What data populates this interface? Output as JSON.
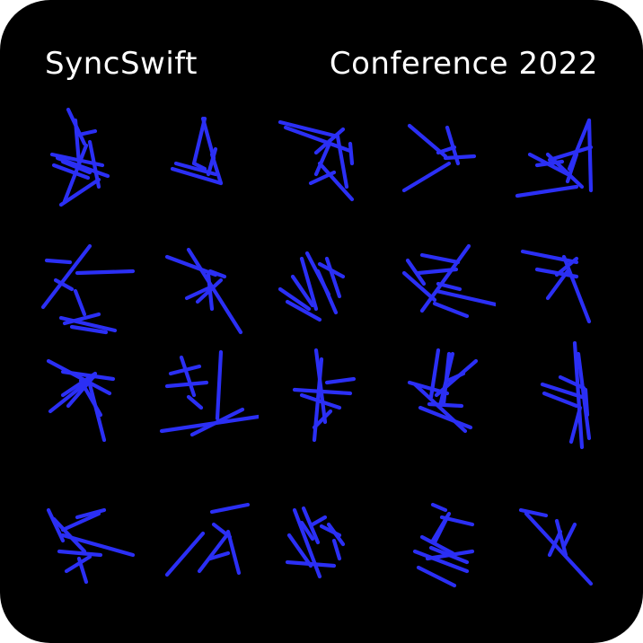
{
  "header": {
    "brand": "SyncSwift",
    "event": "Conference 2022"
  },
  "colors": {
    "background": "#000000",
    "text": "#ffffff",
    "stroke": "#2b2ff5"
  },
  "grid": {
    "rows": 4,
    "columns": 5
  },
  "glyphs": [
    "glyph-r1c1",
    "glyph-r1c2",
    "glyph-r1c3",
    "glyph-r1c4",
    "glyph-r1c5",
    "glyph-r2c1",
    "glyph-r2c2",
    "glyph-r2c3",
    "glyph-r2c4",
    "glyph-r2c5",
    "glyph-r3c1",
    "glyph-r3c2",
    "glyph-r3c3",
    "glyph-r3c4",
    "glyph-r3c5",
    "glyph-r4c1",
    "glyph-r4c2",
    "glyph-r4c3",
    "glyph-r4c4",
    "glyph-r4c5"
  ]
}
